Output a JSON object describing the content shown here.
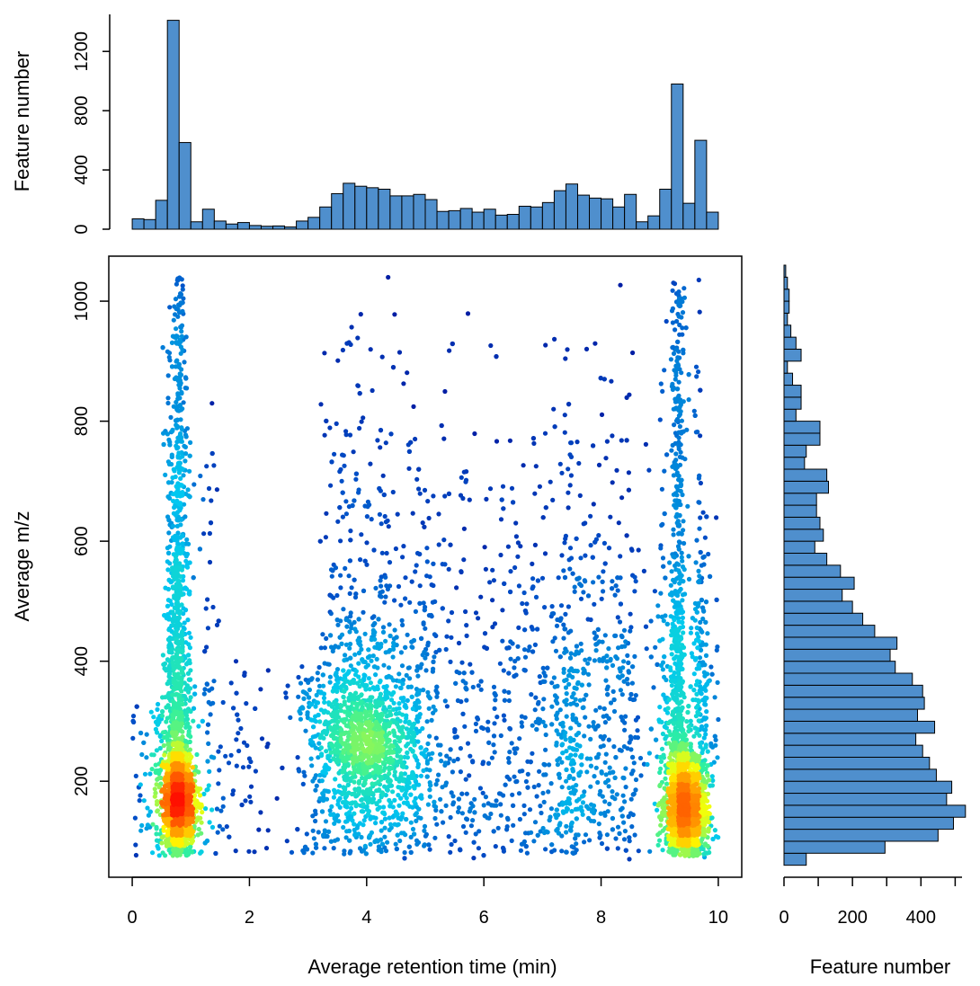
{
  "chart_data": [
    {
      "type": "bar",
      "panel": "top-histogram",
      "ylabel": "Feature number",
      "ylim": [
        0,
        1450
      ],
      "yticks": [
        "0",
        "400",
        "800",
        "1200"
      ],
      "bin_range": [
        0,
        10
      ],
      "values": [
        70,
        65,
        195,
        1410,
        585,
        50,
        135,
        55,
        35,
        45,
        25,
        20,
        22,
        15,
        55,
        80,
        150,
        240,
        310,
        290,
        280,
        270,
        225,
        225,
        235,
        200,
        120,
        125,
        140,
        115,
        135,
        95,
        100,
        155,
        150,
        180,
        260,
        305,
        230,
        210,
        205,
        150,
        235,
        50,
        90,
        270,
        980,
        175,
        600,
        115
      ],
      "color": "#4f8fcd"
    },
    {
      "type": "scatter",
      "panel": "main-scatter",
      "xlabel": "Average retention time (min)",
      "ylabel": "Average m/z",
      "xlim": [
        -0.4,
        10.4
      ],
      "ylim": [
        40,
        1075
      ],
      "xticks": [
        "0",
        "2",
        "4",
        "6",
        "8",
        "10"
      ],
      "yticks": [
        "200",
        "400",
        "600",
        "800",
        "1000"
      ],
      "color_scale": [
        "#00008f",
        "#0050c8",
        "#00c8f0",
        "#30f0a0",
        "#ffff00",
        "#ff8000",
        "#ff1000"
      ],
      "density_clusters": [
        {
          "rt": 0.8,
          "mz": 165,
          "sd_rt": 0.14,
          "sd_mz": 45
        },
        {
          "rt": 9.45,
          "mz": 160,
          "sd_rt": 0.17,
          "sd_mz": 50
        },
        {
          "rt": 4.0,
          "mz": 265,
          "sd_rt": 0.45,
          "sd_mz": 55
        }
      ]
    },
    {
      "type": "bar",
      "panel": "right-histogram",
      "orientation": "horizontal",
      "xlabel": "Feature number",
      "xlim": [
        0,
        520
      ],
      "xticks": [
        "0",
        "200",
        "400"
      ],
      "bin_range": [
        60,
        1060
      ],
      "bin_width": 20,
      "values": [
        65,
        295,
        450,
        495,
        530,
        475,
        490,
        445,
        425,
        405,
        385,
        440,
        390,
        410,
        405,
        375,
        325,
        310,
        330,
        265,
        230,
        200,
        170,
        205,
        165,
        125,
        90,
        115,
        105,
        95,
        95,
        130,
        125,
        60,
        65,
        105,
        105,
        35,
        50,
        50,
        25,
        10,
        50,
        35,
        20,
        10,
        15,
        15,
        10,
        5
      ],
      "color": "#4f8fcd"
    }
  ]
}
